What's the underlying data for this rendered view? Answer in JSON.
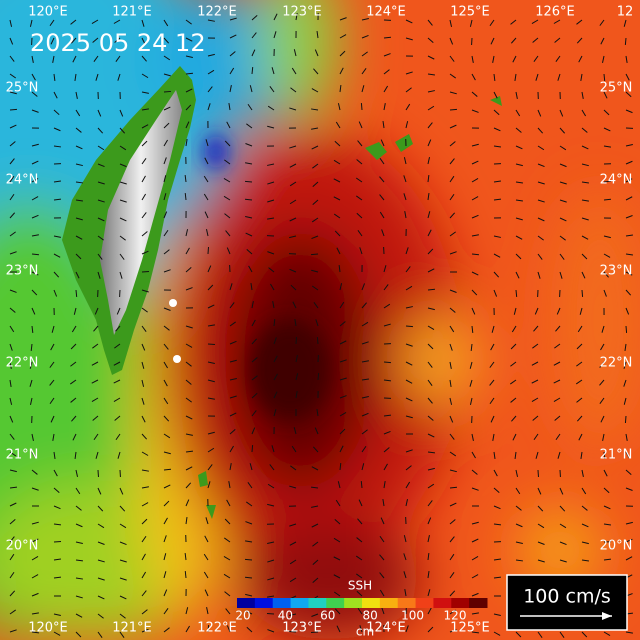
{
  "timestamp": "2025 05 24 12",
  "longitude_labels_top": [
    "120°E",
    "121°E",
    "122°E",
    "123°E",
    "124°E",
    "125°E",
    "126°E",
    "12"
  ],
  "longitude_labels_bottom": [
    "120°E",
    "121°E",
    "122°E",
    "123°E",
    "124°E",
    "125°E"
  ],
  "latitude_labels_left": [
    "25°N",
    "24°N",
    "23°N",
    "22°N",
    "21°N",
    "20°N"
  ],
  "latitude_labels_right": [
    "25°N",
    "24°N",
    "23°N",
    "22°N",
    "21°N",
    "20°N"
  ],
  "colorbar": {
    "title": "SSH",
    "ticks": [
      20,
      40,
      60,
      80,
      100,
      120
    ],
    "unit": "cm"
  },
  "scale_arrow": "100 cm/s"
}
